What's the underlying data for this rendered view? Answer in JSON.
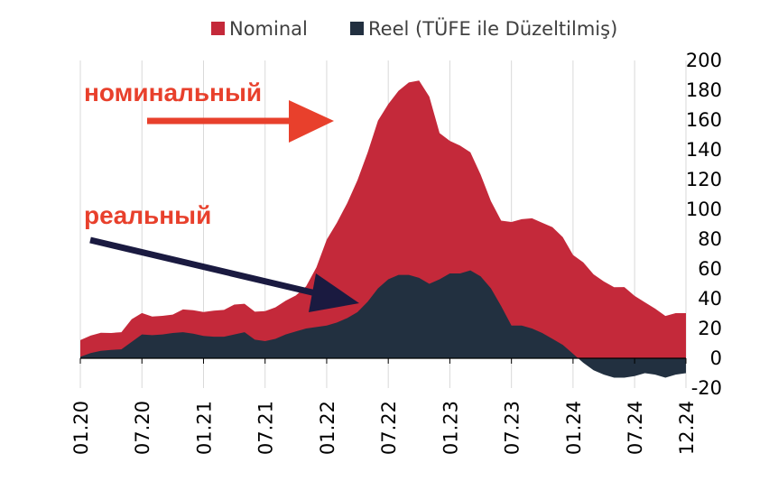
{
  "chart_data": {
    "type": "area",
    "legend_position": "top",
    "grid": true,
    "title": "",
    "xlabel": "",
    "ylabel": "",
    "ylim": [
      -20,
      200
    ],
    "yticks": [
      -20,
      0,
      20,
      40,
      60,
      80,
      100,
      120,
      140,
      160,
      180,
      200
    ],
    "yaxis_side": "right",
    "x_tick_labels": [
      "01.20",
      "07.20",
      "01.21",
      "07.21",
      "01.22",
      "07.22",
      "01.23",
      "07.23",
      "01.24",
      "07.24",
      "12.24"
    ],
    "x_tick_positions": [
      0,
      6,
      12,
      18,
      24,
      30,
      36,
      42,
      48,
      54,
      59
    ],
    "series": [
      {
        "name": "Nominal",
        "color": "#c4293a",
        "values": [
          12.2,
          15.2,
          17.1,
          17.0,
          17.5,
          26.2,
          30.4,
          28.0,
          28.5,
          29.3,
          32.8,
          32.3,
          31.1,
          32.0,
          32.5,
          36.1,
          36.6,
          31.3,
          31.7,
          34.2,
          38.6,
          42.2,
          48.3,
          61.1,
          79.6,
          91.1,
          104.2,
          119.6,
          138.3,
          159.6,
          170.7,
          179.6,
          185.2,
          186.5,
          175.7,
          151.2,
          146.0,
          142.8,
          138.3,
          123.3,
          105.5,
          92.4,
          91.5,
          93.4,
          94.0,
          91.0,
          88.0,
          81.4,
          69.4,
          64.4,
          56.4,
          51.6,
          47.7,
          47.8,
          41.9,
          37.6,
          33.3,
          28.4,
          30.3,
          30.3
        ]
      },
      {
        "name": "Reel (TÜFE ile Düzeltilmiş)",
        "color": "#223040",
        "values": [
          1.0,
          3.5,
          5.0,
          5.6,
          6.0,
          11.0,
          16.0,
          15.5,
          16.0,
          17.0,
          17.5,
          16.5,
          15.0,
          14.5,
          14.5,
          16.0,
          17.5,
          12.5,
          11.5,
          13.0,
          16.0,
          18.0,
          20.0,
          21.0,
          22.0,
          24.0,
          27.0,
          31.0,
          38.0,
          47.0,
          53.0,
          56.0,
          56.0,
          54.0,
          50.0,
          53.0,
          57.0,
          57.0,
          59.0,
          55.0,
          47.0,
          35.0,
          22.0,
          22.0,
          20.0,
          17.0,
          13.0,
          9.0,
          3.0,
          -3.0,
          -8.0,
          -11.0,
          -13.0,
          -13.0,
          -12.0,
          -10.0,
          -11.0,
          -13.0,
          -11.0,
          -10.0
        ]
      }
    ],
    "annotations": [
      {
        "text": "номинальный",
        "arrow_color": "#e8402c"
      },
      {
        "text": "реальный",
        "arrow_color": "#1a1a40"
      }
    ]
  }
}
